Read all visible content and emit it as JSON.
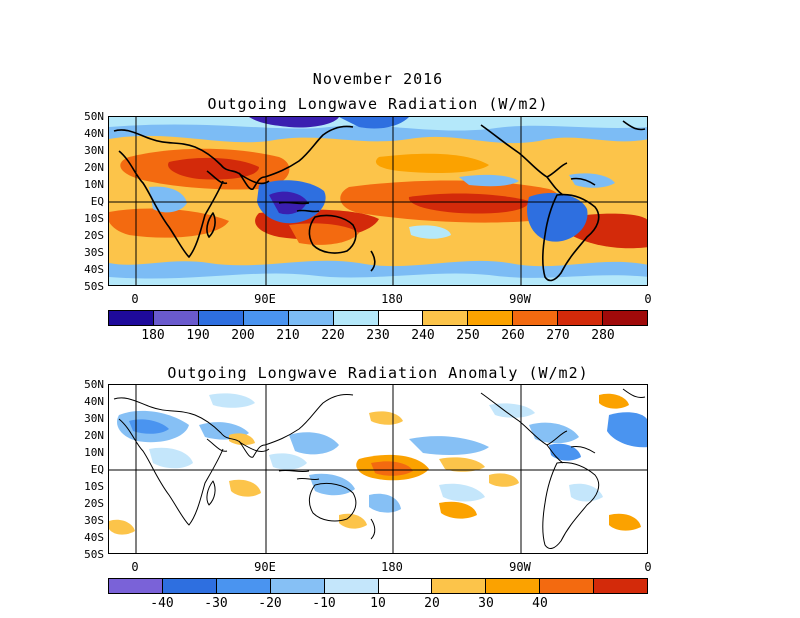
{
  "figure": {
    "title": "November 2016"
  },
  "panels": [
    {
      "title": "Outgoing Longwave Radiation (W/m2)",
      "lat_labels": [
        "50N",
        "40N",
        "30N",
        "20N",
        "10N",
        "EQ",
        "10S",
        "20S",
        "30S",
        "40S",
        "50S"
      ],
      "lon_labels": [
        "0",
        "90E",
        "180",
        "90W",
        "0"
      ],
      "colorbar": {
        "colors": [
          "#1e0a9b",
          "#6a5acd",
          "#2e6fe0",
          "#4a94f0",
          "#7cbcf5",
          "#b4e8fa",
          "#ffffff",
          "#fcc44a",
          "#fba200",
          "#f36a10",
          "#d32a0a",
          "#a00a0a"
        ],
        "labels": [
          "180",
          "190",
          "200",
          "210",
          "220",
          "230",
          "240",
          "250",
          "260",
          "270",
          "280"
        ]
      },
      "field_colors": {
        "cold_deep": "#3a1fb0",
        "cold": "#2e6fe0",
        "cool": "#7cbcf5",
        "pale": "#b4e8fa",
        "neutral": "#ffffff",
        "warm_light": "#fcc44a",
        "warm": "#fba200",
        "hot": "#f36a10",
        "very_hot": "#d32a0a"
      }
    },
    {
      "title": "Outgoing Longwave Radiation Anomaly (W/m2)",
      "lat_labels": [
        "50N",
        "40N",
        "30N",
        "20N",
        "10N",
        "EQ",
        "10S",
        "20S",
        "30S",
        "40S",
        "50S"
      ],
      "lon_labels": [
        "0",
        "90E",
        "180",
        "90W",
        "0"
      ],
      "colorbar": {
        "colors": [
          "#7a62d8",
          "#2e6fe0",
          "#4a94f0",
          "#86c0f5",
          "#c4e6fb",
          "#ffffff",
          "#fcc44a",
          "#fba200",
          "#f36a10",
          "#d32a0a"
        ],
        "labels": [
          "-40",
          "-30",
          "-20",
          "-10",
          "10",
          "20",
          "30",
          "40"
        ]
      },
      "field_colors": {
        "neg_light": "#c4e6fb",
        "neg_mid": "#86c0f5",
        "neg_strong": "#4a94f0",
        "pos_light": "#fcc44a",
        "pos_mid": "#fba200",
        "pos_strong": "#f36a10"
      }
    }
  ]
}
